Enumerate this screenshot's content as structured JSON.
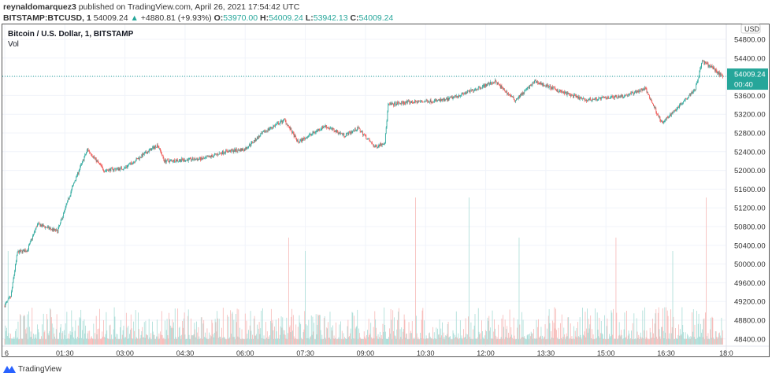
{
  "header": {
    "author": "reynaldomarquez3",
    "published": "published on TradingView.com, April 26, 2021 17:54:42 UTC",
    "symbol": "BITSTAMP:BTCUSD, 1",
    "last": "54009.24",
    "change": "+4880.81 (+9.93%)",
    "o_label": "O:",
    "o": "53970.00",
    "h_label": "H:",
    "h": "54009.24",
    "l_label": "L:",
    "l": "53942.13",
    "c_label": "C:",
    "c": "54009.24"
  },
  "legend": {
    "title": "Bitcoin / U.S. Dollar, 1, BITSTAMP",
    "vol": "Vol"
  },
  "footer": {
    "brand": "TradingView"
  },
  "colors": {
    "up": "#26a69a",
    "down": "#ef5350",
    "vol_up": "#a8dcd6",
    "vol_down": "#f7b8b6",
    "last_price": "#26a69a"
  },
  "chart_data": {
    "type": "candlestick",
    "interval": "1 minute",
    "currency": "USD",
    "ylim": [
      48200,
      54900
    ],
    "y_ticks": [
      "54800.00",
      "54400.00",
      "53600.00",
      "53200.00",
      "52800.00",
      "52400.00",
      "52000.00",
      "51600.00",
      "51200.00",
      "50800.00",
      "50400.00",
      "50000.00",
      "49600.00",
      "49200.00",
      "48800.00",
      "48400.00"
    ],
    "x_ticks": [
      "6",
      "01:30",
      "03:00",
      "04:30",
      "06:00",
      "07:30",
      "09:00",
      "10:30",
      "12:00",
      "13:30",
      "15:00",
      "16:30",
      "18:0"
    ],
    "last_price_label": "54009.24",
    "countdown": "00:40",
    "price_path": [
      [
        "00:00",
        49100
      ],
      [
        "00:10",
        49300
      ],
      [
        "00:20",
        50250
      ],
      [
        "00:35",
        50300
      ],
      [
        "00:50",
        50850
      ],
      [
        "01:20",
        50700
      ],
      [
        "01:45",
        51750
      ],
      [
        "02:05",
        52450
      ],
      [
        "02:30",
        52000
      ],
      [
        "03:00",
        52050
      ],
      [
        "03:50",
        52550
      ],
      [
        "04:00",
        52200
      ],
      [
        "05:00",
        52250
      ],
      [
        "05:30",
        52400
      ],
      [
        "06:00",
        52450
      ],
      [
        "06:30",
        52830
      ],
      [
        "07:00",
        53080
      ],
      [
        "07:20",
        52600
      ],
      [
        "08:00",
        52950
      ],
      [
        "08:30",
        52750
      ],
      [
        "08:50",
        52900
      ],
      [
        "09:15",
        52500
      ],
      [
        "09:30",
        52600
      ],
      [
        "09:35",
        53400
      ],
      [
        "10:00",
        53450
      ],
      [
        "11:00",
        53500
      ],
      [
        "11:30",
        53650
      ],
      [
        "12:15",
        53900
      ],
      [
        "12:45",
        53500
      ],
      [
        "13:15",
        53900
      ],
      [
        "14:00",
        53650
      ],
      [
        "14:30",
        53500
      ],
      [
        "15:30",
        53600
      ],
      [
        "16:00",
        53750
      ],
      [
        "16:25",
        53000
      ],
      [
        "16:45",
        53300
      ],
      [
        "17:15",
        53750
      ],
      [
        "17:25",
        54330
      ],
      [
        "17:40",
        54200
      ],
      [
        "17:55",
        54009.24
      ]
    ],
    "volume_spikes": [
      [
        "00:05",
        0.35
      ],
      [
        "07:05",
        0.4
      ],
      [
        "07:30",
        0.35
      ],
      [
        "10:15",
        0.55
      ],
      [
        "11:35",
        0.55
      ],
      [
        "12:50",
        0.4
      ],
      [
        "15:15",
        0.4
      ],
      [
        "16:40",
        0.35
      ],
      [
        "17:30",
        0.55
      ]
    ]
  }
}
